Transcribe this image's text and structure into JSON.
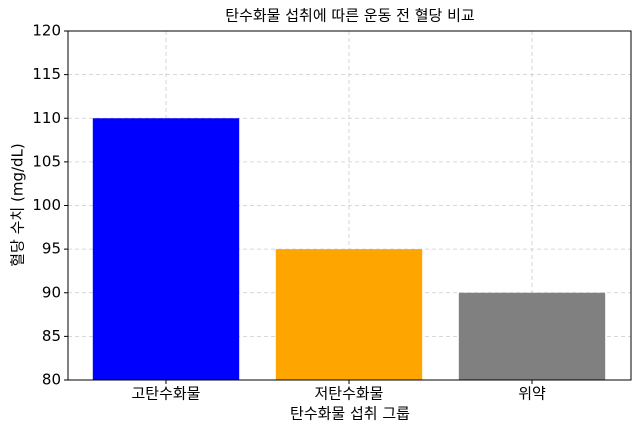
{
  "chart_data": {
    "type": "bar",
    "title": "탄수화물 섭취에 따른 운동 전 혈당 비교",
    "x_label": "탄수화물 섭취 그룹",
    "y_label": "혈당 수치 (mg/dL)",
    "categories": [
      "고탄수화물",
      "저탄수화물",
      "위약"
    ],
    "values": [
      110,
      95,
      90
    ],
    "colors": [
      "#0000ff",
      "#ffa500",
      "#808080"
    ],
    "ylim": [
      80,
      120
    ],
    "yticks": [
      80,
      85,
      90,
      95,
      100,
      105,
      110,
      115,
      120
    ],
    "grid": true
  }
}
